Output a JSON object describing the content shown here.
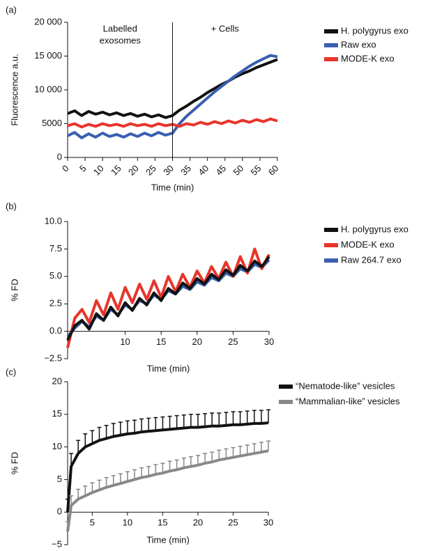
{
  "chart_data": [
    {
      "type": "line",
      "panel": "(a)",
      "ylabel": "Fluorescence a.u.",
      "xlabel": "Time (min)",
      "annotations": [
        "Labelled",
        "exosomes",
        "+ Cells"
      ],
      "vline": 30,
      "x": [
        0,
        2,
        4,
        6,
        8,
        10,
        12,
        14,
        16,
        18,
        20,
        22,
        24,
        26,
        28,
        30,
        32,
        34,
        36,
        38,
        40,
        42,
        44,
        46,
        48,
        50,
        52,
        54,
        56,
        58,
        60
      ],
      "series": [
        {
          "name": "H. polygyrus exo",
          "color": "#111111",
          "values": [
            6500,
            6900,
            6200,
            6800,
            6400,
            6700,
            6300,
            6600,
            6200,
            6500,
            6100,
            6400,
            6000,
            6300,
            5900,
            6200,
            7000,
            7600,
            8300,
            8900,
            9600,
            10200,
            10800,
            11300,
            11900,
            12400,
            12800,
            13300,
            13700,
            14100,
            14500
          ]
        },
        {
          "name": "Raw exo",
          "color": "#3a5fb0",
          "values": [
            3200,
            3700,
            2900,
            3500,
            3000,
            3600,
            3100,
            3400,
            3000,
            3500,
            3100,
            3600,
            3200,
            3700,
            3300,
            3600,
            5000,
            6100,
            7000,
            7900,
            8800,
            9700,
            10500,
            11300,
            12100,
            12800,
            13500,
            14100,
            14600,
            15100,
            14900
          ]
        },
        {
          "name": "MODE-K exo",
          "color": "#e8352b",
          "values": [
            4700,
            5000,
            4500,
            4900,
            4600,
            5000,
            4700,
            4900,
            4600,
            5000,
            4700,
            4900,
            4600,
            5000,
            4700,
            4900,
            4600,
            5000,
            4800,
            5200,
            4900,
            5300,
            5000,
            5400,
            5100,
            5500,
            5200,
            5600,
            5300,
            5700,
            5400
          ]
        }
      ],
      "xlim": [
        0,
        60
      ],
      "xticks": [
        0,
        5,
        10,
        15,
        20,
        25,
        30,
        35,
        40,
        45,
        50,
        55,
        60
      ],
      "ylim": [
        0,
        20000
      ],
      "yticks": [
        0,
        5000,
        {
          "value": 10000,
          "label": "10 000"
        },
        {
          "value": 15000,
          "label": "15 000"
        },
        {
          "value": 20000,
          "label": "20 000"
        }
      ]
    },
    {
      "type": "line",
      "panel": "(b)",
      "ylabel": "% FD",
      "xlabel": "Time (min)",
      "x": [
        2,
        3,
        4,
        5,
        6,
        7,
        8,
        9,
        10,
        11,
        12,
        13,
        14,
        15,
        16,
        17,
        18,
        19,
        20,
        21,
        22,
        23,
        24,
        25,
        26,
        27,
        28,
        29,
        30
      ],
      "series": [
        {
          "name": "H. polygyrus exo",
          "color": "#111111",
          "values": [
            -0.8,
            0.5,
            1.0,
            0.2,
            1.6,
            1.0,
            2.2,
            1.4,
            2.6,
            1.9,
            3.0,
            2.4,
            3.5,
            2.8,
            3.9,
            3.4,
            4.4,
            3.9,
            4.8,
            4.3,
            5.2,
            4.7,
            5.6,
            5.1,
            6.0,
            5.5,
            6.4,
            5.9,
            6.8
          ]
        },
        {
          "name": "MODE-K exo",
          "color": "#e8352b",
          "values": [
            -1.5,
            1.2,
            2.0,
            0.8,
            2.8,
            1.5,
            3.5,
            2.0,
            4.0,
            2.6,
            4.3,
            2.9,
            4.6,
            3.1,
            5.0,
            3.6,
            5.2,
            4.0,
            5.5,
            4.4,
            5.9,
            4.8,
            6.3,
            5.0,
            6.8,
            5.3,
            7.5,
            5.7,
            7.0
          ]
        },
        {
          "name": "Raw 264.7 exo",
          "color": "#3a5fb0",
          "values": [
            -0.5,
            0.3,
            0.9,
            0.4,
            1.4,
            1.0,
            2.0,
            1.5,
            2.4,
            2.0,
            2.8,
            2.5,
            3.3,
            2.9,
            3.7,
            3.4,
            4.1,
            3.8,
            4.5,
            4.2,
            4.9,
            4.6,
            5.3,
            5.0,
            5.7,
            5.4,
            6.1,
            5.8,
            6.5
          ]
        }
      ],
      "draw_order": [
        2,
        1,
        0
      ],
      "xlim": [
        2,
        30
      ],
      "xticks": [
        10,
        15,
        20,
        25,
        30
      ],
      "ylim": [
        -2.5,
        10
      ],
      "yticks": [
        {
          "value": -2.5,
          "label": "−2.5"
        },
        {
          "value": 0,
          "label": "0.0"
        },
        2.5,
        {
          "value": 5,
          "label": "5.0"
        },
        7.5,
        {
          "value": 10,
          "label": "10.0"
        }
      ]
    },
    {
      "type": "line",
      "panel": "(c)",
      "ylabel": "% FD",
      "xlabel": "Time (min)",
      "x": [
        1.5,
        2,
        3,
        4,
        5,
        6,
        7,
        8,
        9,
        10,
        11,
        12,
        13,
        14,
        15,
        16,
        17,
        18,
        19,
        20,
        21,
        22,
        23,
        24,
        25,
        26,
        27,
        28,
        29,
        30
      ],
      "series": [
        {
          "name": "“Nematode-like” vesicles",
          "color": "#111111",
          "values": [
            0,
            7,
            9,
            10,
            10.5,
            11,
            11.3,
            11.6,
            11.8,
            12,
            12.1,
            12.3,
            12.4,
            12.5,
            12.6,
            12.7,
            12.8,
            12.9,
            13,
            13,
            13.1,
            13.2,
            13.2,
            13.3,
            13.4,
            13.4,
            13.5,
            13.6,
            13.6,
            13.7
          ],
          "errors": [
            2,
            2,
            2,
            2,
            2,
            2,
            2,
            2,
            2,
            2,
            2,
            2,
            2,
            2,
            2,
            2,
            2,
            2,
            2,
            2,
            2,
            2,
            2,
            2,
            2,
            2,
            2,
            2,
            2,
            2
          ]
        },
        {
          "name": "“Mammalian-like” vesicles",
          "color": "#888888",
          "values": [
            -3,
            1,
            2,
            2.5,
            3,
            3.4,
            3.8,
            4.1,
            4.4,
            4.7,
            5,
            5.3,
            5.5,
            5.8,
            6,
            6.3,
            6.5,
            6.8,
            7,
            7.2,
            7.5,
            7.7,
            8,
            8.2,
            8.4,
            8.6,
            8.8,
            9,
            9.2,
            9.4
          ],
          "errors": [
            1.5,
            1.5,
            1.5,
            1.5,
            1.5,
            1.5,
            1.5,
            1.5,
            1.5,
            1.5,
            1.5,
            1.5,
            1.5,
            1.5,
            1.5,
            1.5,
            1.5,
            1.5,
            1.5,
            1.5,
            1.5,
            1.5,
            1.5,
            1.5,
            1.5,
            1.5,
            1.5,
            1.5,
            1.5,
            1.5
          ]
        }
      ],
      "xlim": [
        1.5,
        30
      ],
      "xticks": [
        5,
        10,
        15,
        20,
        25,
        30
      ],
      "ylim": [
        -5,
        20
      ],
      "yticks": [
        {
          "value": -5,
          "label": "−5"
        },
        0,
        5,
        10,
        15,
        20
      ]
    }
  ]
}
